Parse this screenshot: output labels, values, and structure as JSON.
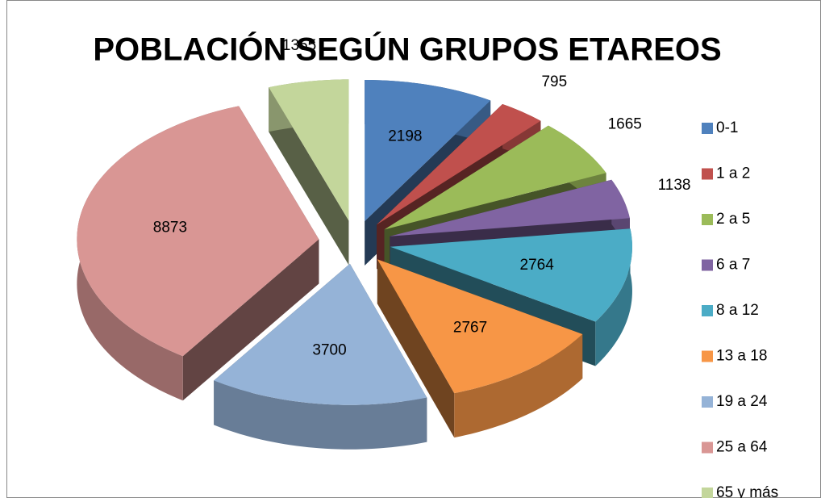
{
  "chart_data": {
    "type": "pie",
    "title": "POBLACIÓN SEGÚN GRUPOS ETAREOS",
    "categories": [
      "0-1",
      "1 a 2",
      "2 a 5",
      "6 a 7",
      "8 a 12",
      "13 a 18",
      "19 a 24",
      "25 a 64",
      "65 y más"
    ],
    "values": [
      2198,
      795,
      1665,
      1138,
      2764,
      2767,
      3700,
      8873,
      1355
    ],
    "colors": [
      "#4f81bd",
      "#c0504d",
      "#9bbb59",
      "#8064a2",
      "#4bacc6",
      "#f79646",
      "#95b3d7",
      "#d99694",
      "#c3d69b"
    ],
    "legend": "right"
  }
}
